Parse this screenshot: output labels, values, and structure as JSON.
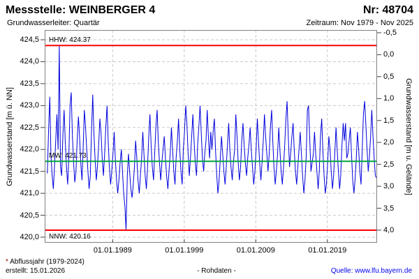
{
  "header": {
    "station_label": "Messstelle: WEINBERGER 4",
    "number_label": "Nr: 48704",
    "aquifer_label": "Grundwasserleiter: Quartär",
    "period_label": "Zeitraum: Nov 1979 - Nov 2025"
  },
  "footer": {
    "footnote_star": "*",
    "footnote_text": " Abflussjahr (1979-2024)",
    "created_label": "erstellt:  15.01.2026",
    "center_label": "- Rohdaten -",
    "source_label": "Quelle: www.lfu.bayern.de"
  },
  "chart_data": {
    "type": "line",
    "ylabel_left": "Grundwasserstand [m ü. NN]",
    "ylabel_right": "Grundwasserstand [m u. Gelände]",
    "x_range": [
      1979.5,
      2025.95
    ],
    "y_range": [
      419.873,
      424.723
    ],
    "grid": true,
    "ground_elevation": 424.16,
    "y_left_ticks": [
      {
        "value": 424.5,
        "label": "424,5"
      },
      {
        "value": 424.0,
        "label": "424,0"
      },
      {
        "value": 423.5,
        "label": "423,5"
      },
      {
        "value": 423.0,
        "label": "423,0"
      },
      {
        "value": 422.5,
        "label": "422,5"
      },
      {
        "value": 422.0,
        "label": "422,0"
      },
      {
        "value": 421.5,
        "label": "421,5"
      },
      {
        "value": 421.0,
        "label": "421,0"
      },
      {
        "value": 420.5,
        "label": "420,5"
      },
      {
        "value": 420.0,
        "label": "420,0"
      }
    ],
    "y_right_ticks": [
      {
        "value": -0.5,
        "label": "-0,5"
      },
      {
        "value": 0.0,
        "label": "0,0"
      },
      {
        "value": 0.5,
        "label": "0,5"
      },
      {
        "value": 1.0,
        "label": "1,0"
      },
      {
        "value": 1.5,
        "label": "1,5"
      },
      {
        "value": 2.0,
        "label": "2,0"
      },
      {
        "value": 2.5,
        "label": "2,5"
      },
      {
        "value": 3.0,
        "label": "3,0"
      },
      {
        "value": 3.5,
        "label": "3,5"
      },
      {
        "value": 4.0,
        "label": "4,0"
      }
    ],
    "x_ticks": [
      {
        "value": 1989.0,
        "label": "01.01.1989"
      },
      {
        "value": 1999.0,
        "label": "01.01.1999"
      },
      {
        "value": 2009.0,
        "label": "01.01.2009"
      },
      {
        "value": 2019.0,
        "label": "01.01.2019"
      }
    ],
    "reference_lines": [
      {
        "name": "HHW",
        "label": "HHW: 424.37",
        "value": 424.37,
        "color": "#ff0000",
        "label_position": "above"
      },
      {
        "name": "MW",
        "label": "MW: 421.73",
        "value": 421.73,
        "color": "#00a33c",
        "label_position": "above"
      },
      {
        "name": "NNW",
        "label": "NNW: 420.16",
        "value": 420.16,
        "color": "#ff0000",
        "label_position": "below"
      }
    ],
    "series": {
      "name": "Rohdaten",
      "color": "#0000dd",
      "unit": "m ü. NN",
      "start_point": [
        1979.87,
        421.45
      ],
      "start_year": 1980,
      "sample_months": [
        0.04,
        0.21,
        0.37,
        0.54,
        0.71,
        0.87
      ],
      "yearly_values": [
        [
          422.4,
          423.2,
          421.9,
          421.4,
          421.1,
          421.6
        ],
        [
          422.2,
          422.8,
          422.0,
          424.37,
          421.6,
          421.4
        ],
        [
          422.3,
          422.9,
          422.2,
          421.6,
          421.2,
          421.8
        ],
        [
          423.0,
          423.3,
          422.3,
          421.7,
          421.25,
          421.5
        ],
        [
          422.2,
          422.75,
          422.3,
          421.7,
          421.3,
          422.0
        ],
        [
          422.9,
          422.5,
          422.0,
          421.5,
          421.1,
          421.4
        ],
        [
          422.4,
          423.25,
          422.4,
          421.8,
          421.3,
          421.6
        ],
        [
          422.1,
          422.7,
          422.4,
          421.8,
          421.4,
          421.9
        ],
        [
          422.5,
          423.0,
          422.2,
          421.6,
          421.2,
          421.5
        ],
        [
          421.9,
          422.4,
          421.8,
          421.3,
          421.0,
          421.3
        ],
        [
          421.7,
          422.0,
          421.5,
          421.0,
          420.7,
          420.16
        ],
        [
          421.4,
          421.9,
          421.5,
          421.1,
          420.9,
          421.2
        ],
        [
          421.6,
          422.2,
          421.8,
          421.3,
          421.0,
          421.4
        ],
        [
          421.8,
          422.4,
          421.9,
          421.4,
          421.1,
          421.6
        ],
        [
          422.3,
          422.8,
          422.1,
          421.6,
          421.3,
          421.9
        ],
        [
          422.5,
          422.9,
          422.2,
          421.7,
          421.3,
          421.7
        ],
        [
          422.0,
          422.3,
          421.8,
          421.4,
          421.1,
          421.5
        ],
        [
          421.9,
          422.5,
          422.0,
          421.5,
          421.2,
          421.8
        ],
        [
          422.2,
          422.7,
          422.0,
          421.5,
          421.2,
          422.0
        ],
        [
          422.4,
          423.0,
          422.6,
          421.9,
          421.4,
          421.8
        ],
        [
          422.3,
          422.8,
          422.2,
          421.7,
          421.4,
          422.1
        ],
        [
          422.5,
          423.0,
          422.4,
          421.8,
          421.5,
          421.9
        ],
        [
          422.2,
          422.9,
          422.3,
          421.8,
          422.4,
          422.0
        ],
        [
          422.4,
          422.7,
          422.0,
          421.4,
          421.0,
          421.3
        ],
        [
          421.8,
          422.3,
          421.9,
          421.5,
          421.2,
          421.6
        ],
        [
          422.1,
          422.6,
          422.0,
          421.6,
          421.3,
          421.7
        ],
        [
          422.0,
          422.8,
          422.3,
          421.7,
          421.3,
          421.6
        ],
        [
          422.2,
          422.6,
          422.1,
          421.7,
          421.4,
          421.8
        ],
        [
          422.1,
          422.5,
          422.0,
          421.6,
          421.2,
          421.5
        ],
        [
          422.0,
          422.7,
          422.2,
          421.7,
          421.3,
          421.7
        ],
        [
          422.2,
          422.8,
          422.3,
          421.9,
          421.5,
          421.9
        ],
        [
          422.5,
          422.9,
          422.2,
          421.6,
          421.2,
          421.5
        ],
        [
          421.9,
          422.5,
          422.0,
          421.5,
          421.2,
          421.6
        ],
        [
          422.1,
          422.7,
          423.1,
          422.3,
          421.6,
          421.9
        ],
        [
          422.3,
          422.6,
          422.0,
          421.5,
          421.2,
          421.6
        ],
        [
          422.0,
          422.4,
          421.9,
          421.4,
          421.0,
          421.3
        ],
        [
          421.8,
          422.9,
          423.0,
          422.2,
          421.5,
          421.7
        ],
        [
          421.9,
          422.4,
          421.9,
          421.5,
          421.1,
          421.5
        ],
        [
          422.3,
          422.7,
          422.0,
          421.4,
          421.0,
          421.2
        ],
        [
          421.7,
          422.3,
          422.0,
          421.5,
          421.1,
          421.4
        ],
        [
          421.9,
          422.5,
          422.0,
          421.5,
          421.1,
          421.4
        ],
        [
          422.1,
          422.6,
          422.2,
          422.6,
          421.8,
          421.9
        ],
        [
          422.2,
          422.5,
          421.9,
          421.3,
          421.0,
          421.3
        ],
        [
          421.8,
          422.4,
          422.0,
          421.5,
          421.2,
          422.0
        ],
        [
          422.8,
          423.1,
          422.6,
          422.0,
          421.5,
          421.8
        ],
        [
          422.3,
          422.9,
          422.3,
          421.8,
          421.4,
          421.35
        ]
      ]
    }
  }
}
